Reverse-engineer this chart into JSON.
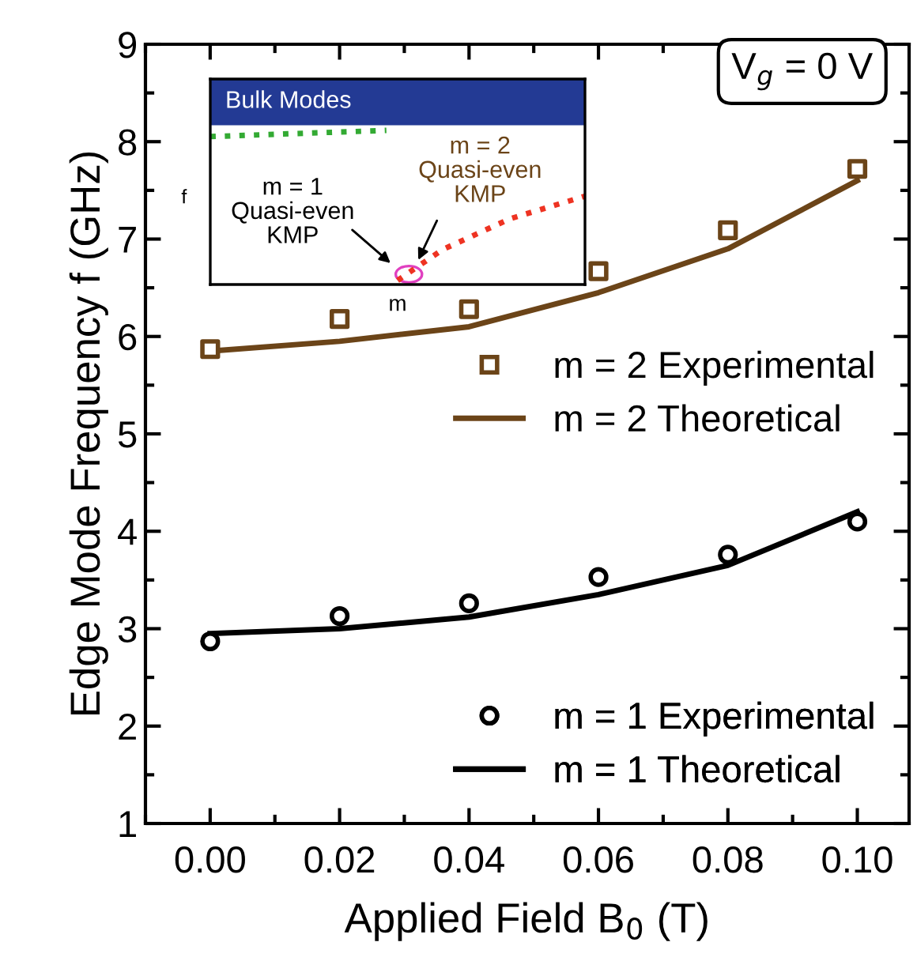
{
  "chart_data": {
    "type": "scatter",
    "xlabel": "Applied Field B$_{0}$ (T)",
    "ylabel": "Edge Mode Frequency f (GHz)",
    "x": [
      0.0,
      0.02,
      0.04,
      0.06,
      0.08,
      0.1
    ],
    "series": [
      {
        "name": "m = 2 Experimental",
        "color": "#6b4418",
        "marker": "square",
        "values": [
          5.87,
          6.18,
          6.28,
          6.67,
          7.09,
          7.72
        ]
      },
      {
        "name": "m = 2 Theoretical",
        "color": "#6b4418",
        "type": "line",
        "marker": "none",
        "line_style": "solid",
        "values": [
          5.85,
          5.95,
          6.1,
          6.45,
          6.9,
          7.6
        ]
      },
      {
        "name": "m = 1 Experimental",
        "color": "#000000",
        "marker": "circle",
        "values": [
          2.87,
          3.13,
          3.26,
          3.53,
          3.76,
          4.1
        ]
      },
      {
        "name": "m = 1 Theoretical",
        "color": "#000000",
        "type": "line",
        "marker": "none",
        "line_style": "solid",
        "values": [
          2.95,
          3.0,
          3.12,
          3.35,
          3.65,
          4.2
        ]
      }
    ],
    "xlim": [
      -0.01,
      0.108
    ],
    "xticks": [
      {
        "value": 0.0,
        "label": "0.00"
      },
      {
        "value": 0.02,
        "label": "0.02"
      },
      {
        "value": 0.04,
        "label": "0.04"
      },
      {
        "value": 0.06,
        "label": "0.06"
      },
      {
        "value": 0.08,
        "label": "0.08"
      },
      {
        "value": 0.1,
        "label": "0.10"
      }
    ],
    "ylim": [
      1,
      9
    ],
    "yticks": [
      1,
      2,
      3,
      4,
      5,
      6,
      7,
      8,
      9
    ],
    "grid": false,
    "legend": "right",
    "annotations": [
      "V$_{g}$ = 0 V",
      "Bulk Modes",
      "m = 2\nQuasi-even\nKMP",
      "m = 1\nQuasi-even\nKMP",
      "f",
      "m"
    ]
  }
}
